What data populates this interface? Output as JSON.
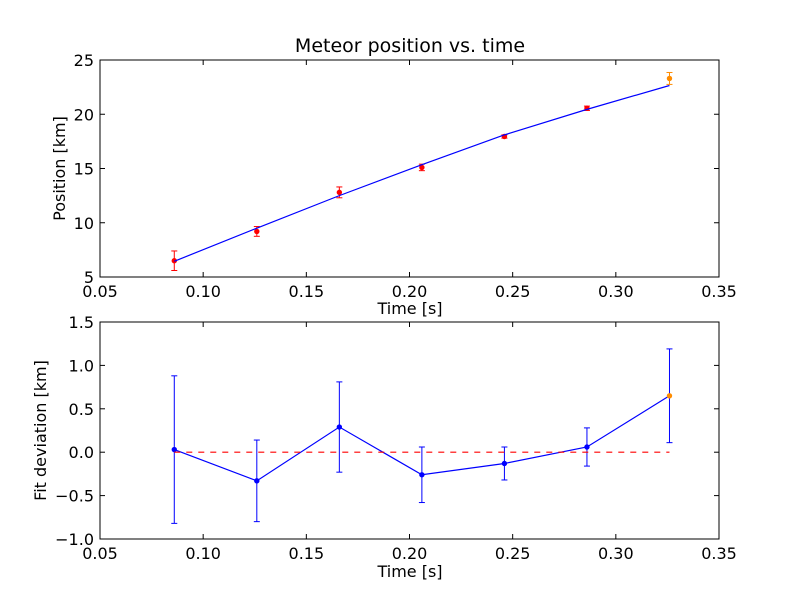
{
  "chart_data": [
    {
      "type": "scatter",
      "title": "Meteor position vs. time",
      "xlabel": "Time [s]",
      "ylabel": "Position [km]",
      "xlim": [
        0.05,
        0.35
      ],
      "ylim": [
        5,
        25
      ],
      "xticks": [
        "0.05",
        "0.10",
        "0.15",
        "0.20",
        "0.25",
        "0.30",
        "0.35"
      ],
      "yticks": [
        "5",
        "10",
        "15",
        "20",
        "25"
      ],
      "grid": false,
      "series": [
        {
          "kind": "errorbar-points",
          "x": [
            0.086,
            0.126,
            0.166,
            0.206,
            0.246,
            0.286
          ],
          "y": [
            6.5,
            9.2,
            12.8,
            15.1,
            17.95,
            20.55
          ],
          "yerr": [
            0.9,
            0.45,
            0.5,
            0.3,
            0.15,
            0.2
          ],
          "color": "#ff0000"
        },
        {
          "kind": "errorbar-points",
          "x": [
            0.326
          ],
          "y": [
            23.3
          ],
          "yerr": [
            0.55
          ],
          "color": "#ff8c00"
        },
        {
          "kind": "fit-line",
          "x": [
            0.086,
            0.126,
            0.166,
            0.206,
            0.246,
            0.286,
            0.326
          ],
          "y": [
            6.45,
            9.5,
            12.5,
            15.35,
            18.1,
            20.45,
            22.65
          ],
          "color": "#0000ff"
        }
      ]
    },
    {
      "type": "line",
      "title": "",
      "xlabel": "Time [s]",
      "ylabel": "Fit deviation [km]",
      "xlim": [
        0.05,
        0.35
      ],
      "ylim": [
        -1.0,
        1.5
      ],
      "xticks": [
        "0.05",
        "0.10",
        "0.15",
        "0.20",
        "0.25",
        "0.30",
        "0.35"
      ],
      "yticks": [
        "−1.0",
        "−0.5",
        "0.0",
        "0.5",
        "1.0",
        "1.5"
      ],
      "grid": false,
      "series": [
        {
          "kind": "errorbar-line",
          "x": [
            0.086,
            0.126,
            0.166,
            0.206,
            0.246,
            0.286,
            0.326
          ],
          "y": [
            0.03,
            -0.33,
            0.29,
            -0.26,
            -0.13,
            0.06,
            0.65
          ],
          "yerr": [
            0.85,
            0.47,
            0.52,
            0.32,
            0.19,
            0.22,
            0.54
          ],
          "color": "#0000ff",
          "last_point_color": "#ff8c00"
        },
        {
          "kind": "zero-line",
          "x": [
            0.086,
            0.326
          ],
          "y": [
            0,
            0
          ],
          "color": "#ff0000",
          "dashed": true
        }
      ]
    }
  ]
}
